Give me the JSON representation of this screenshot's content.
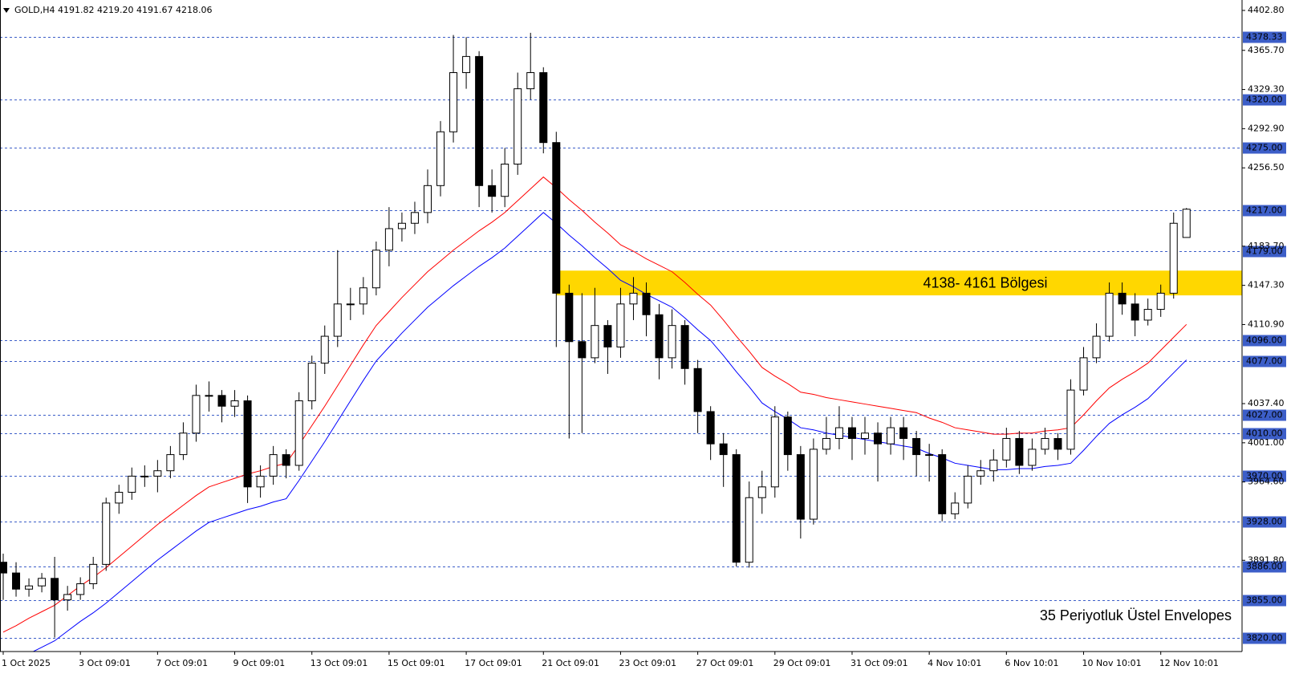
{
  "chart_data": {
    "type": "candlestick",
    "header": "GOLD,H4  4191.82 4219.20 4191.67 4218.06",
    "categories": [
      "1 Oct 2025",
      null,
      null,
      null,
      null,
      null,
      "3 Oct 09:01",
      null,
      null,
      null,
      null,
      null,
      "7 Oct 09:01",
      null,
      null,
      null,
      null,
      null,
      "9 Oct 09:01",
      null,
      null,
      null,
      null,
      null,
      "13 Oct 09:01",
      null,
      null,
      null,
      null,
      null,
      "15 Oct 09:01",
      null,
      null,
      null,
      null,
      null,
      "17 Oct 09:01",
      null,
      null,
      null,
      null,
      null,
      "21 Oct 09:01",
      null,
      null,
      null,
      null,
      null,
      "23 Oct 09:01",
      null,
      null,
      null,
      null,
      null,
      "27 Oct 09:01",
      null,
      null,
      null,
      null,
      null,
      "29 Oct 09:01",
      null,
      null,
      null,
      null,
      null,
      "31 Oct 09:01",
      null,
      null,
      null,
      null,
      null,
      "4 Nov 10:01",
      null,
      null,
      null,
      null,
      null,
      "6 Nov 10:01",
      null,
      null,
      null,
      null,
      null,
      "10 Nov 10:01",
      null,
      null,
      null,
      null,
      null,
      "12 Nov 10:01",
      null,
      null
    ],
    "open": [
      3890,
      3880,
      3865,
      3868,
      3875,
      3855,
      3860,
      3870,
      3888,
      3945,
      3955,
      3970,
      3970,
      3975,
      3990,
      4010,
      4045,
      4045,
      4035,
      4040,
      3960,
      3970,
      3990,
      3980,
      4040,
      4075,
      4100,
      4130,
      4130,
      4145,
      4180,
      4200,
      4205,
      4215,
      4240,
      4290,
      4345,
      4360,
      4240,
      4230,
      4260,
      4330,
      4345,
      4280,
      4140,
      4095,
      4080,
      4110,
      4090,
      4130,
      4140,
      4120,
      4080,
      4110,
      4070,
      4030,
      4000,
      3990,
      3890,
      3950,
      3960,
      4025,
      3990,
      3930,
      3995,
      4005,
      4015,
      4005,
      4010,
      4000,
      4015,
      4005,
      3990,
      3990,
      3935,
      3945,
      3970,
      3975,
      3985,
      4005,
      3980,
      3995,
      4005,
      3995,
      4050,
      4080,
      4100,
      4140,
      4130,
      4115,
      4125,
      4140,
      4191.82
    ],
    "high": [
      3898,
      3890,
      3875,
      3880,
      3895,
      3868,
      3876,
      3895,
      3950,
      3962,
      3978,
      3980,
      3985,
      3998,
      4020,
      4055,
      4058,
      4050,
      4050,
      4045,
      3980,
      3998,
      3995,
      4048,
      4082,
      4110,
      4180,
      4145,
      4155,
      4188,
      4220,
      4215,
      4225,
      4255,
      4300,
      4380,
      4378,
      4365,
      4255,
      4275,
      4345,
      4382,
      4350,
      4290,
      4148,
      4140,
      4145,
      4115,
      4145,
      4155,
      4150,
      4130,
      4125,
      4115,
      4078,
      4035,
      4010,
      3995,
      3965,
      3975,
      4035,
      4030,
      3998,
      4005,
      4025,
      4035,
      4025,
      4025,
      4020,
      4025,
      4025,
      4012,
      4000,
      3995,
      3955,
      3980,
      3985,
      3995,
      4015,
      4012,
      4005,
      4015,
      4010,
      4060,
      4090,
      4112,
      4150,
      4150,
      4140,
      4135,
      4148,
      4215,
      4219.2
    ],
    "low": [
      3855,
      3858,
      3858,
      3862,
      3820,
      3845,
      3855,
      3865,
      3882,
      3935,
      3948,
      3960,
      3955,
      3968,
      3985,
      4002,
      4030,
      4020,
      4025,
      3945,
      3950,
      3962,
      3968,
      3975,
      4032,
      4065,
      4090,
      4115,
      4120,
      4138,
      4165,
      4188,
      4195,
      4205,
      4230,
      4280,
      4330,
      4220,
      4215,
      4220,
      4250,
      4320,
      4270,
      4090,
      4005,
      4010,
      4075,
      4065,
      4080,
      4115,
      4100,
      4060,
      4070,
      4055,
      4010,
      3985,
      3960,
      3886,
      3885,
      3935,
      3950,
      3975,
      3912,
      3925,
      3990,
      3995,
      3985,
      3990,
      3965,
      3990,
      3985,
      3970,
      3965,
      3928,
      3930,
      3940,
      3962,
      3965,
      3978,
      3972,
      3975,
      3990,
      3985,
      3990,
      4045,
      4075,
      4095,
      4120,
      4100,
      4110,
      4118,
      4135,
      4191.67
    ],
    "close": [
      3880,
      3865,
      3868,
      3875,
      3855,
      3860,
      3870,
      3888,
      3945,
      3955,
      3970,
      3970,
      3975,
      3990,
      4010,
      4045,
      4045,
      4035,
      4040,
      3960,
      3970,
      3990,
      3980,
      4040,
      4075,
      4100,
      4130,
      4130,
      4145,
      4180,
      4200,
      4205,
      4215,
      4240,
      4290,
      4345,
      4360,
      4240,
      4230,
      4260,
      4330,
      4345,
      4280,
      4140,
      4095,
      4080,
      4110,
      4090,
      4130,
      4140,
      4120,
      4080,
      4110,
      4070,
      4030,
      4000,
      3990,
      3890,
      3950,
      3960,
      4025,
      3990,
      3930,
      3995,
      4005,
      4015,
      4005,
      4010,
      4000,
      4015,
      4005,
      3990,
      3990,
      3935,
      3945,
      3970,
      3975,
      3985,
      4005,
      3980,
      3995,
      4005,
      3995,
      4050,
      4080,
      4100,
      4140,
      4130,
      4115,
      4125,
      4140,
      4205,
      4218.06
    ],
    "up_color": "#ffffff",
    "down_color": "#000000",
    "envelope_upper": {
      "color": "#ff0000",
      "values": [
        3825,
        3831,
        3838,
        3844,
        3850,
        3859,
        3868,
        3876,
        3885,
        3895,
        3905,
        3915,
        3925,
        3934,
        3943,
        3952,
        3960,
        3964,
        3968,
        3972,
        3975,
        3979,
        3982,
        3999,
        4017,
        4035,
        4054,
        4073,
        4092,
        4110,
        4123,
        4136,
        4148,
        4160,
        4170,
        4180,
        4189,
        4198,
        4206,
        4215,
        4226,
        4237,
        4248,
        4238,
        4227,
        4217,
        4206,
        4196,
        4185,
        4179,
        4172,
        4166,
        4160,
        4150,
        4139,
        4129,
        4115,
        4100,
        4086,
        4071,
        4063,
        4056,
        4048,
        4046,
        4043,
        4041,
        4039,
        4037,
        4035,
        4033,
        4031,
        4029,
        4024,
        4020,
        4015,
        4013,
        4011,
        4009,
        4009,
        4010,
        4010,
        4012,
        4013,
        4015,
        4027,
        4040,
        4052,
        4060,
        4067,
        4075,
        4087,
        4099,
        4111
      ]
    },
    "envelope_lower": {
      "color": "#0000ff",
      "values": [
        3792,
        3798,
        3805,
        3811,
        3817,
        3826,
        3835,
        3843,
        3852,
        3862,
        3872,
        3882,
        3892,
        3901,
        3910,
        3919,
        3927,
        3931,
        3935,
        3939,
        3942,
        3946,
        3949,
        3966,
        3984,
        4002,
        4021,
        4040,
        4059,
        4077,
        4090,
        4103,
        4115,
        4127,
        4137,
        4147,
        4156,
        4165,
        4173,
        4182,
        4193,
        4204,
        4215,
        4205,
        4194,
        4184,
        4173,
        4163,
        4152,
        4146,
        4139,
        4133,
        4127,
        4117,
        4106,
        4096,
        4082,
        4067,
        4053,
        4038,
        4030,
        4023,
        4015,
        4013,
        4010,
        4008,
        4006,
        4004,
        4002,
        4000,
        3998,
        3996,
        3991,
        3987,
        3982,
        3980,
        3978,
        3976,
        3976,
        3977,
        3977,
        3979,
        3980,
        3982,
        3994,
        4007,
        4019,
        4027,
        4034,
        4042,
        4054,
        4066,
        4078
      ]
    },
    "ylim": [
      3807,
      4411
    ],
    "yticks": [
      {
        "value": 4402.8,
        "label": "4402.80"
      },
      {
        "value": 4365.7,
        "label": "4365.70"
      },
      {
        "value": 4329.3,
        "label": "4329.30"
      },
      {
        "value": 4292.9,
        "label": "4292.90"
      },
      {
        "value": 4256.5,
        "label": "4256.50"
      },
      {
        "value": 4183.7,
        "label": "4183.70"
      },
      {
        "value": 4147.3,
        "label": "4147.30"
      },
      {
        "value": 4110.9,
        "label": "4110.90"
      },
      {
        "value": 4037.4,
        "label": "4037.40"
      },
      {
        "value": 4001,
        "label": "4001.00"
      },
      {
        "value": 3964.6,
        "label": "3964.60"
      },
      {
        "value": 3891.8,
        "label": "3891.80"
      }
    ],
    "grid": false,
    "levels": [
      {
        "value": 4378.33,
        "label": "4378.33"
      },
      {
        "value": 4320,
        "label": "4320.00"
      },
      {
        "value": 4275,
        "label": "4275.00"
      },
      {
        "value": 4217,
        "label": "4217.00"
      },
      {
        "value": 4179,
        "label": "4179.00"
      },
      {
        "value": 4096,
        "label": "4096.00"
      },
      {
        "value": 4077,
        "label": "4077.00"
      },
      {
        "value": 4027,
        "label": "4027.00"
      },
      {
        "value": 4010,
        "label": "4010.00"
      },
      {
        "value": 3970,
        "label": "3970.00"
      },
      {
        "value": 3928,
        "label": "3928.00"
      },
      {
        "value": 3886,
        "label": "3886.00"
      },
      {
        "value": 3855,
        "label": "3855.00"
      },
      {
        "value": 3820,
        "label": "3820.00"
      }
    ],
    "level_color": "#3c5ec8",
    "zone": {
      "low": 4138,
      "high": 4161,
      "label": "4138- 4161 Bölgesi",
      "color": "#ffd700"
    },
    "annotation": {
      "text": "35 Periyotluk Üstel Envelopes",
      "color": "#3559d6"
    }
  }
}
